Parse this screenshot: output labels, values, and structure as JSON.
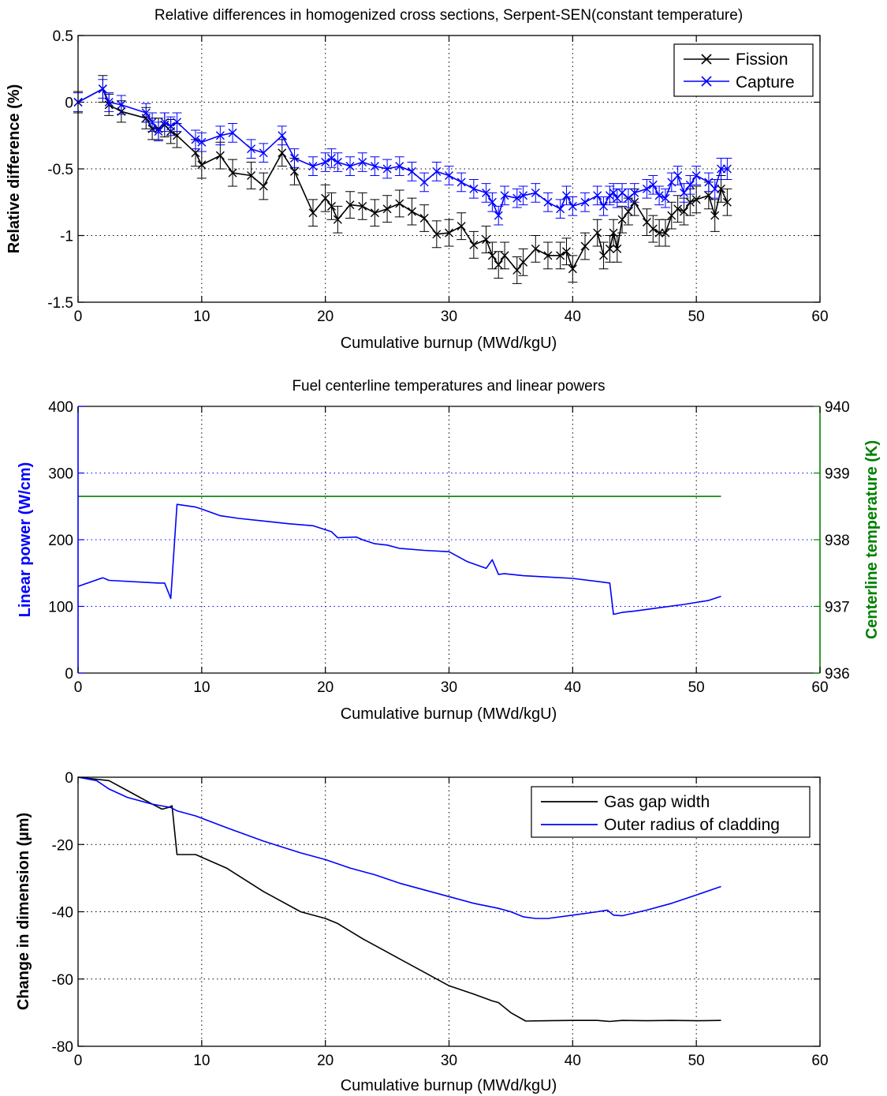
{
  "colors": {
    "black": "#000000",
    "blue": "#0000ff",
    "green": "#008000",
    "frame": "#000000",
    "grid": "#000000"
  },
  "chart_data": [
    {
      "type": "line",
      "title": "Relative differences in homogenized cross sections, Serpent-SEN(constant temperature)",
      "xlabel": "Cumulative burnup (MWd/kgU)",
      "ylabel": "Relative difference (%)",
      "xlim": [
        0,
        60
      ],
      "ylim": [
        -1.5,
        0.5
      ],
      "xticks": [
        "0",
        "10",
        "20",
        "30",
        "40",
        "50",
        "60"
      ],
      "yticks": [
        "-1.5",
        "-1",
        "-0.5",
        "0",
        "0.5"
      ],
      "grid": true,
      "legend": {
        "position": "top-right",
        "entries": [
          "Fission",
          "Capture"
        ]
      },
      "error_bars": true,
      "series": [
        {
          "name": "Fission",
          "color": "black",
          "marker": "x",
          "x": [
            0,
            2,
            2.5,
            3.5,
            5.5,
            6,
            6.5,
            7,
            7.5,
            8,
            9.5,
            10,
            11.5,
            12.5,
            14,
            15,
            16.5,
            17.5,
            19,
            20,
            20.5,
            21,
            22,
            23,
            24,
            25,
            26,
            27,
            28,
            29,
            30,
            31,
            32,
            33,
            33.5,
            34,
            34.5,
            35.5,
            36,
            37,
            38,
            39,
            39.5,
            40,
            41,
            42,
            42.5,
            43,
            43.3,
            43.6,
            44,
            44.5,
            45,
            46,
            46.5,
            47,
            47.5,
            48,
            48.5,
            49,
            49.5,
            50,
            51,
            51.5,
            52,
            52.5
          ],
          "y": [
            0,
            0.1,
            -0.02,
            -0.07,
            -0.12,
            -0.2,
            -0.2,
            -0.17,
            -0.22,
            -0.25,
            -0.38,
            -0.47,
            -0.4,
            -0.53,
            -0.55,
            -0.63,
            -0.38,
            -0.52,
            -0.83,
            -0.72,
            -0.78,
            -0.88,
            -0.77,
            -0.78,
            -0.83,
            -0.8,
            -0.76,
            -0.82,
            -0.87,
            -0.99,
            -0.98,
            -0.93,
            -1.07,
            -1.03,
            -1.15,
            -1.22,
            -1.15,
            -1.26,
            -1.2,
            -1.1,
            -1.15,
            -1.15,
            -1.12,
            -1.25,
            -1.08,
            -0.98,
            -1.15,
            -1.1,
            -0.98,
            -1.1,
            -0.88,
            -0.82,
            -0.75,
            -0.9,
            -0.95,
            -0.98,
            -0.98,
            -0.85,
            -0.8,
            -0.82,
            -0.75,
            -0.73,
            -0.7,
            -0.85,
            -0.65,
            -0.75
          ],
          "err": [
            0.08,
            0.1,
            0.08,
            0.08,
            0.08,
            0.08,
            0.08,
            0.09,
            0.09,
            0.09,
            0.1,
            0.1,
            0.1,
            0.1,
            0.1,
            0.1,
            0.1,
            0.1,
            0.1,
            0.1,
            0.1,
            0.1,
            0.1,
            0.1,
            0.1,
            0.1,
            0.1,
            0.1,
            0.1,
            0.1,
            0.1,
            0.1,
            0.1,
            0.1,
            0.1,
            0.1,
            0.1,
            0.1,
            0.1,
            0.1,
            0.1,
            0.1,
            0.1,
            0.1,
            0.1,
            0.1,
            0.1,
            0.1,
            0.1,
            0.1,
            0.1,
            0.1,
            0.1,
            0.1,
            0.1,
            0.1,
            0.1,
            0.1,
            0.1,
            0.1,
            0.1,
            0.1,
            0.1,
            0.12,
            0.1,
            0.1
          ]
        },
        {
          "name": "Capture",
          "color": "blue",
          "marker": "x",
          "x": [
            0,
            2,
            2.5,
            3.5,
            5.5,
            6,
            6.5,
            7,
            7.5,
            8,
            9.5,
            10,
            11.5,
            12.5,
            14,
            15,
            16.5,
            17.5,
            19,
            20,
            20.5,
            21,
            22,
            23,
            24,
            25,
            26,
            27,
            28,
            29,
            30,
            31,
            32,
            33,
            33.5,
            34,
            34.5,
            35.5,
            36,
            37,
            38,
            39,
            39.5,
            40,
            41,
            42,
            42.5,
            43,
            43.3,
            43.6,
            44,
            44.5,
            45,
            46,
            46.5,
            47,
            47.5,
            48,
            48.5,
            49,
            49.5,
            50,
            51,
            51.5,
            52,
            52.5
          ],
          "y": [
            0,
            0.1,
            0,
            -0.02,
            -0.08,
            -0.15,
            -0.22,
            -0.15,
            -0.18,
            -0.15,
            -0.28,
            -0.3,
            -0.25,
            -0.23,
            -0.35,
            -0.38,
            -0.25,
            -0.42,
            -0.48,
            -0.45,
            -0.42,
            -0.45,
            -0.48,
            -0.45,
            -0.48,
            -0.5,
            -0.48,
            -0.52,
            -0.6,
            -0.52,
            -0.55,
            -0.6,
            -0.65,
            -0.68,
            -0.75,
            -0.85,
            -0.7,
            -0.72,
            -0.7,
            -0.68,
            -0.75,
            -0.8,
            -0.7,
            -0.78,
            -0.75,
            -0.7,
            -0.78,
            -0.7,
            -0.68,
            -0.72,
            -0.68,
            -0.72,
            -0.68,
            -0.65,
            -0.62,
            -0.7,
            -0.72,
            -0.6,
            -0.55,
            -0.68,
            -0.62,
            -0.55,
            -0.6,
            -0.65,
            -0.5,
            -0.5
          ],
          "err": [
            0.07,
            0.07,
            0.07,
            0.07,
            0.07,
            0.07,
            0.07,
            0.07,
            0.07,
            0.07,
            0.07,
            0.07,
            0.07,
            0.07,
            0.07,
            0.07,
            0.07,
            0.07,
            0.07,
            0.07,
            0.07,
            0.07,
            0.07,
            0.07,
            0.07,
            0.07,
            0.07,
            0.07,
            0.07,
            0.07,
            0.07,
            0.07,
            0.07,
            0.07,
            0.07,
            0.07,
            0.07,
            0.07,
            0.07,
            0.07,
            0.07,
            0.07,
            0.07,
            0.07,
            0.07,
            0.07,
            0.07,
            0.07,
            0.07,
            0.07,
            0.07,
            0.07,
            0.07,
            0.07,
            0.07,
            0.07,
            0.07,
            0.07,
            0.07,
            0.07,
            0.07,
            0.07,
            0.07,
            0.07,
            0.08,
            0.08
          ]
        }
      ]
    },
    {
      "type": "line",
      "title": "Fuel centerline temperatures and linear powers",
      "xlabel": "Cumulative burnup (MWd/kgU)",
      "ylabel": "Linear power (W/cm)",
      "ylabel_right": "Centerline temperature (K)",
      "xlim": [
        0,
        60
      ],
      "ylim": [
        0,
        400
      ],
      "ylim_right": [
        936,
        940
      ],
      "xticks": [
        "0",
        "10",
        "20",
        "30",
        "40",
        "50",
        "60"
      ],
      "yticks": [
        "0",
        "100",
        "200",
        "300",
        "400"
      ],
      "yticks_right": [
        "936",
        "937",
        "938",
        "939",
        "940"
      ],
      "grid": true,
      "series": [
        {
          "name": "",
          "color": "blue",
          "axis": "left",
          "x": [
            0,
            2,
            2.5,
            6.5,
            7,
            7.5,
            8,
            9.5,
            10,
            11.5,
            13,
            15,
            17,
            19,
            20.5,
            21,
            22.5,
            23,
            24,
            25,
            26,
            28,
            30,
            31.5,
            33,
            33.5,
            34,
            34.5,
            36,
            38,
            40,
            43,
            43.3,
            44,
            45,
            47,
            49,
            51,
            52
          ],
          "y": [
            130,
            143,
            139,
            135,
            135,
            112,
            253,
            249,
            246,
            236,
            232,
            228,
            224,
            221,
            212,
            203,
            204,
            200,
            194,
            192,
            187,
            184,
            182,
            167,
            157,
            170,
            148,
            149,
            146,
            144,
            142,
            135,
            88,
            91,
            93,
            98,
            103,
            109,
            115
          ]
        },
        {
          "name": "",
          "color": "green",
          "axis": "right",
          "x": [
            0,
            52
          ],
          "y": [
            938.65,
            938.65
          ]
        }
      ]
    },
    {
      "type": "line",
      "title": "",
      "xlabel": "Cumulative burnup (MWd/kgU)",
      "ylabel": "Change in dimension (µm)",
      "xlim": [
        0,
        60
      ],
      "ylim": [
        -80,
        0
      ],
      "xticks": [
        "0",
        "10",
        "20",
        "30",
        "40",
        "50",
        "60"
      ],
      "yticks": [
        "-80",
        "-60",
        "-40",
        "-20",
        "0"
      ],
      "grid": true,
      "legend": {
        "position": "top-right",
        "entries": [
          "Gas gap width",
          "Outer radius of cladding"
        ]
      },
      "series": [
        {
          "name": "Gas gap width",
          "color": "black",
          "x": [
            0,
            2.5,
            4,
            6,
            6.8,
            7.3,
            7.6,
            8,
            9.5,
            12,
            15,
            18,
            20,
            21,
            23,
            26,
            28,
            30,
            32,
            33.5,
            34,
            35,
            36.2,
            38,
            40,
            42,
            43,
            44,
            46,
            48,
            50,
            52
          ],
          "y": [
            0,
            -1,
            -4,
            -8,
            -9.5,
            -9,
            -8.5,
            -23,
            -23,
            -27,
            -34,
            -40,
            -42,
            -43.5,
            -48,
            -54,
            -58,
            -62,
            -64.5,
            -66.5,
            -67,
            -70,
            -72.5,
            -72.4,
            -72.3,
            -72.3,
            -72.6,
            -72.3,
            -72.4,
            -72.3,
            -72.4,
            -72.3
          ]
        },
        {
          "name": "Outer radius of cladding",
          "color": "blue",
          "x": [
            0,
            1.5,
            2.5,
            4,
            6,
            7.5,
            8,
            9.5,
            12,
            15,
            18,
            20,
            22,
            24,
            26,
            28,
            30,
            32,
            34,
            35,
            36,
            37,
            38,
            40,
            42,
            42.8,
            43.3,
            44,
            46,
            48,
            50,
            52
          ],
          "y": [
            0,
            -1,
            -3.5,
            -6,
            -8,
            -9,
            -10,
            -11.5,
            -15,
            -19,
            -22.5,
            -24.5,
            -27,
            -29,
            -31.5,
            -33.5,
            -35.5,
            -37.5,
            -39,
            -40,
            -41.5,
            -42,
            -42,
            -41,
            -40,
            -39.5,
            -41,
            -41.2,
            -39.5,
            -37.5,
            -35,
            -32.5
          ]
        }
      ]
    }
  ]
}
